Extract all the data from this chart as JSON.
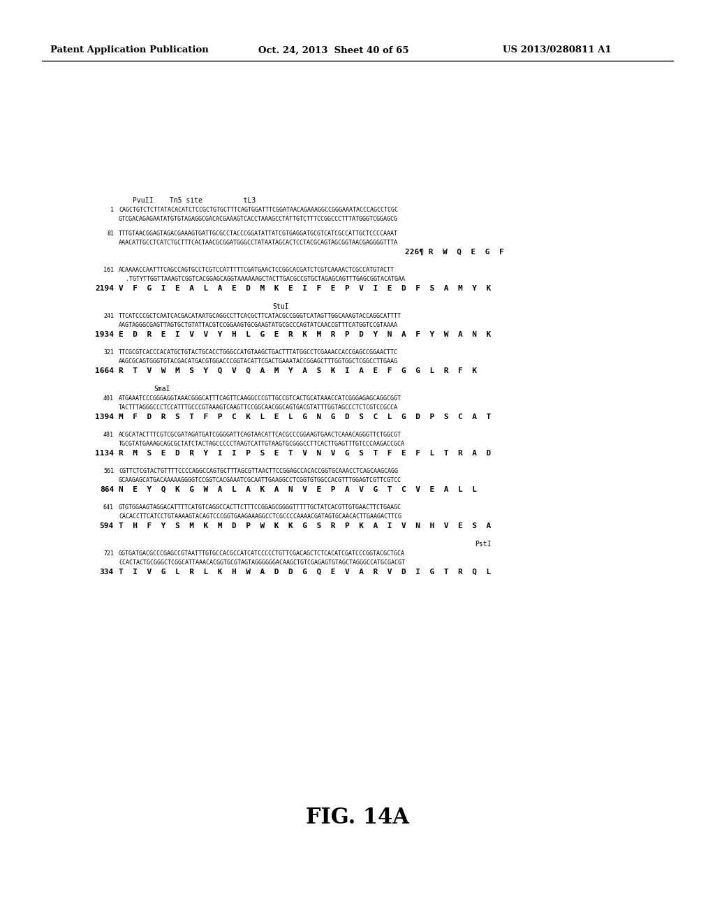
{
  "header_left": "Patent Application Publication",
  "header_mid": "Oct. 24, 2013  Sheet 40 of 65",
  "header_right": "US 2013/0280811 A1",
  "figure_label": "FIG. 14A",
  "background_color": "#ffffff",
  "text_color": "#000000",
  "seq_lines": [
    {
      "type": "annot",
      "text": "PvuII    Tn5 site          tL3",
      "indent": "annot_left"
    },
    {
      "type": "seq",
      "num": "1",
      "line1": "CAGCTGTCTCTTATACACATCTCCGCTGTGCTTTCAGTGGATTTCGGATAACAGAAAGGCCGGGAAATACCCAGCCTCGC",
      "line2": "GTCGACAGAGAATATGTGTAGAGGCGACACGAAAGTCACCTAAAGCCTATTGTCTTTCCGGCCCTTTATGGGTCGGAGCG"
    },
    {
      "type": "blank"
    },
    {
      "type": "seq",
      "num": "81",
      "line1": "TTTGTAACGGAGTAGACGAAAGTGATTGCGCCTACCCGGATATTATCGTGAGGATGCGTCATCGCCATTGCTCCCCAAAT",
      "line2": "AAACATTGCCTCATCTGCTTTCACTAACGCGGATGGGCCTATAATAGCACTCCTACGCAGTAGCGGTAACGAGGGGTTTA"
    },
    {
      "type": "aa",
      "num": "226",
      "text": "R  W  Q  E  G  F",
      "right_align": true
    },
    {
      "type": "blank"
    },
    {
      "type": "seq",
      "num": "161",
      "line1": "ACAAAACCAATTTCAGCCAGTGCCTCGTCCATTTTTCGATGAACTCCGGCACGATCTCGTCAAAACTCGCCATGTACTT",
      "line2": "  .TGTYTTGGTTAAAGTCGGTCACGGAGCAGGTAAAAAAGCTACTTGACGCCGTGCTAGAGCAGTTTGAGCGGTACATGAA"
    },
    {
      "type": "aa",
      "num": "2194",
      "text": "V  F  G  I  E  A  L  A  E  D  M  K  E  I  F  E  P  V  I  E  D  F  S  A  M  Y  K",
      "right_align": false
    },
    {
      "type": "blank"
    },
    {
      "type": "annot",
      "text": "StuI",
      "indent": "annot_mid"
    },
    {
      "type": "seq",
      "num": "241",
      "line1": "TTCATCCCGCTCAATCACGACATAATGCAGGCCTTCACGCTTCATACGCCGGGTCATAGTTGGCAAAGTACCAGGCATTTT",
      "line2": "AAGTAGGGCGAGTTAGTGCTGTATTACGTCCGGAAGTGCGAAGTATGCGCCCAGTATCAACCGTTTCATGGTCCGTAAAA"
    },
    {
      "type": "aa",
      "num": "1934",
      "text": "E  D  R  E  I  V  V  Y  H  L  G  E  R  K  M  R  P  D  Y  N  A  F  Y  W  A  N  K",
      "right_align": false
    },
    {
      "type": "blank"
    },
    {
      "type": "seq",
      "num": "321",
      "line1": "TTCGCGTCACCCACATGCTGTACTGCACCTGGGCCATGTAAGCTGACTTTATGGCCTCGAAACCACCGAGCCGGAACTTC",
      "line2": "AAGCGCAGTGGGTGTACGACATGACGTGGACCCGGTACATTCGACTGAAATACCGGAGCTTTGGTGGCTCGGCCTTGAAG"
    },
    {
      "type": "aa",
      "num": "1664",
      "text": "R  T  V  W  M  S  Y  Q  V  Q  A  M  Y  A  S  K  I  A  E  F  G  G  L  R  F  K",
      "right_align": false
    },
    {
      "type": "blank"
    },
    {
      "type": "annot",
      "text": "SmaI",
      "indent": "annot_smal"
    },
    {
      "type": "seq",
      "num": "401",
      "line1": "ATGAAATCCCGGGAGGTAAACGGGCATTTCAGTTCAAGGCCCGTTGCCGTCACTGCATAAACCATCGGGAGAGCAGGCGGT",
      "line2": "TACTTTAGGGCCCTCCATTTGCCCGTAAAGTCAAGTTCCGGCAACGGCAGTGACGTATTTGGTAGCCCTCTCGTCCGCCA"
    },
    {
      "type": "aa",
      "num": "1394",
      "text": "M  F  D  R  S  T  F  P  C  K  L  E  L  G  N  G  D  S  C  L  G  D  P  S  C  A  T",
      "right_align": false
    },
    {
      "type": "blank"
    },
    {
      "type": "seq",
      "num": "481",
      "line1": "ACGCATACTTTCGTCGCGATAGATGATCGGGGATTCAGTAACATTCACGCCCGGAAGTGAACTCAAACAGGGTTCTGGCGT",
      "line2": "TGCGTATGAAAGCAGCGCTATCTACTAGCCCCCTAAGTCATTGTAAGTGCGGGCCTTCACTTGAGTTTGTCCCAAGACCGCA"
    },
    {
      "type": "aa",
      "num": "1134",
      "text": "R  M  S  E  D  R  Y  I  I  P  S  E  T  V  N  V  G  S  T  F  E  F  L  T  R  A  D",
      "right_align": false
    },
    {
      "type": "blank"
    },
    {
      "type": "seq",
      "num": "561",
      "line1": "CGTTCTCGTACTGTTTTCCCCAGGCCAGTGCTTTAGCGTTAACTTCCGGAGCCACACCGGTGCAAACCTCAGCAAGCAGG",
      "line2": "GCAAGAGCATGACAAAAAGGGGTCCGGTCACGAAATCGCAATTGAAGGCCTCGGTGTGGCCACGTTTGGAGTCGTTCGTCC"
    },
    {
      "type": "aa",
      "num": "864",
      "text": "N  E  Y  Q  K  G  W  A  L  A  K  A  N  V  E  P  A  V  G  T  C  V  E  A  L  L",
      "right_align": false,
      "short_num": true
    },
    {
      "type": "blank"
    },
    {
      "type": "seq",
      "num": "641",
      "line1": "GTGTGGAAGTAGGACATTTTCATGTCAGGCCACTTCTTTCCGGAGCGGGGTTTTTGCTATCACGTTGTGAACTTCTGAAGC",
      "line2": "CACACCTTCATCCTGTAAAAGTACAGTCCCGGTGAAGAAAGGCCTCGCCCCAAAACGATAGTGCAACACTTGAAGACTTCG"
    },
    {
      "type": "aa",
      "num": "594",
      "text": "T  H  F  Y  S  M  K  M  D  P  W  K  K  G  S  R  P  K  A  I  V  N  H  V  E  S  A",
      "right_align": false,
      "short_num": true
    },
    {
      "type": "blank"
    },
    {
      "type": "annot",
      "text": "PstI",
      "indent": "annot_psti"
    },
    {
      "type": "seq",
      "num": "721",
      "line1": "GGTGATGACGCCCGAGCCGTAATTTGTGCCACGCCATCATCCCCCTGTTCGACAGCTCTCACATCGATCCCGGTACGCTGCA",
      "line2": "CCACTACTGCGGGCTCGGCATTAAACACGGTGCGTAGTAGGGGGGACAAGCTGTCGAGAGTGTAGCTAGGGCCATGCGACGT"
    },
    {
      "type": "aa",
      "num": "334",
      "text": "T  I  V  G  L  R  L  K  H  W  A  D  D  G  Q  E  V  A  R  V  D  I  G  T  R  Q  L",
      "right_align": false
    }
  ]
}
